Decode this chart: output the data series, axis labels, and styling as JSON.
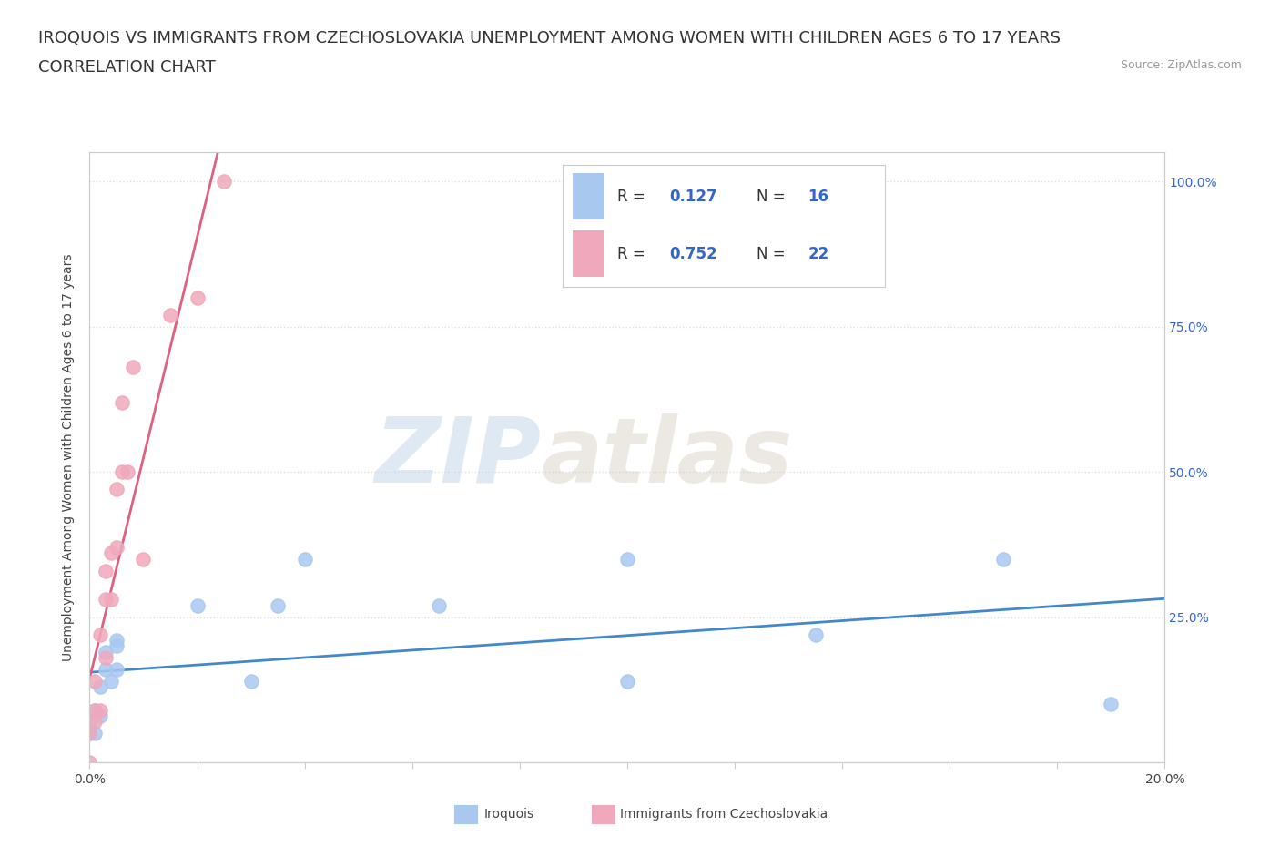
{
  "title_line1": "IROQUOIS VS IMMIGRANTS FROM CZECHOSLOVAKIA UNEMPLOYMENT AMONG WOMEN WITH CHILDREN AGES 6 TO 17 YEARS",
  "title_line2": "CORRELATION CHART",
  "source_text": "Source: ZipAtlas.com",
  "ylabel": "Unemployment Among Women with Children Ages 6 to 17 years",
  "xlim": [
    0.0,
    0.2
  ],
  "ylim": [
    0.0,
    1.05
  ],
  "x_ticks": [
    0.0,
    0.02,
    0.04,
    0.06,
    0.08,
    0.1,
    0.12,
    0.14,
    0.16,
    0.18,
    0.2
  ],
  "y_ticks": [
    0.0,
    0.25,
    0.5,
    0.75,
    1.0
  ],
  "y_tick_labels_right": [
    "",
    "25.0%",
    "50.0%",
    "75.0%",
    "100.0%"
  ],
  "watermark_zip": "ZIP",
  "watermark_atlas": "atlas",
  "iroquois_color": "#a8c8f0",
  "czech_color": "#f0a8bc",
  "iroquois_edge_color": "#88aadd",
  "czech_edge_color": "#dd88aa",
  "iroquois_line_color": "#4488cc",
  "czech_line_color": "#e06080",
  "legend_color": "#3366cc",
  "iroquois_x": [
    0.0,
    0.0,
    0.001,
    0.001,
    0.002,
    0.002,
    0.003,
    0.003,
    0.004,
    0.005,
    0.005,
    0.005,
    0.02,
    0.03,
    0.035,
    0.04,
    0.065,
    0.1,
    0.1,
    0.135,
    0.17,
    0.19
  ],
  "iroquois_y": [
    0.05,
    0.07,
    0.05,
    0.09,
    0.08,
    0.13,
    0.16,
    0.19,
    0.14,
    0.16,
    0.2,
    0.21,
    0.27,
    0.14,
    0.27,
    0.35,
    0.27,
    0.14,
    0.35,
    0.22,
    0.35,
    0.1
  ],
  "czech_x": [
    0.0,
    0.0,
    0.001,
    0.001,
    0.001,
    0.002,
    0.002,
    0.003,
    0.003,
    0.003,
    0.004,
    0.004,
    0.005,
    0.005,
    0.006,
    0.006,
    0.007,
    0.008,
    0.01,
    0.015,
    0.02,
    0.025
  ],
  "czech_y": [
    0.0,
    0.05,
    0.07,
    0.09,
    0.14,
    0.09,
    0.22,
    0.18,
    0.28,
    0.33,
    0.28,
    0.36,
    0.37,
    0.47,
    0.5,
    0.62,
    0.5,
    0.68,
    0.35,
    0.77,
    0.8,
    1.0
  ],
  "background_color": "#ffffff",
  "grid_color": "#dddddd",
  "title_fontsize": 13,
  "axis_label_fontsize": 10,
  "tick_fontsize": 10,
  "legend_fontsize": 12
}
